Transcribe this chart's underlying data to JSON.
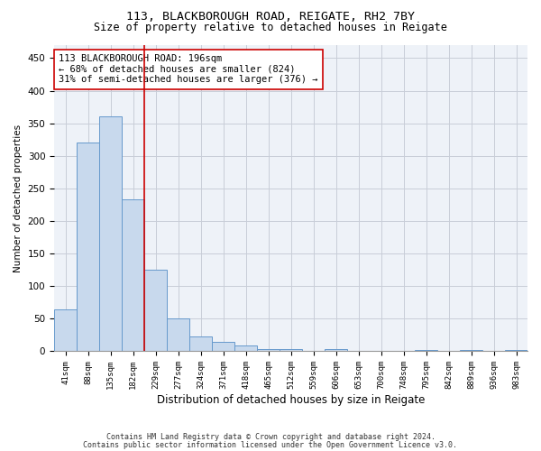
{
  "title1": "113, BLACKBOROUGH ROAD, REIGATE, RH2 7BY",
  "title2": "Size of property relative to detached houses in Reigate",
  "xlabel": "Distribution of detached houses by size in Reigate",
  "ylabel": "Number of detached properties",
  "bar_labels": [
    "41sqm",
    "88sqm",
    "135sqm",
    "182sqm",
    "229sqm",
    "277sqm",
    "324sqm",
    "371sqm",
    "418sqm",
    "465sqm",
    "512sqm",
    "559sqm",
    "606sqm",
    "653sqm",
    "700sqm",
    "748sqm",
    "795sqm",
    "842sqm",
    "889sqm",
    "936sqm",
    "983sqm"
  ],
  "bar_values": [
    65,
    320,
    360,
    233,
    125,
    50,
    23,
    15,
    9,
    4,
    4,
    0,
    3,
    0,
    0,
    0,
    2,
    0,
    2,
    0,
    2
  ],
  "bar_color": "#c8d9ed",
  "bar_edge_color": "#6699cc",
  "vline_x": 3.5,
  "vline_color": "#cc0000",
  "annotation_text": "113 BLACKBOROUGH ROAD: 196sqm\n← 68% of detached houses are smaller (824)\n31% of semi-detached houses are larger (376) →",
  "annotation_box_color": "white",
  "annotation_box_edge": "#cc0000",
  "ylim": [
    0,
    470
  ],
  "yticks": [
    0,
    50,
    100,
    150,
    200,
    250,
    300,
    350,
    400,
    450
  ],
  "footnote1": "Contains HM Land Registry data © Crown copyright and database right 2024.",
  "footnote2": "Contains public sector information licensed under the Open Government Licence v3.0.",
  "background_color": "#eef2f8",
  "grid_color": "#c8cdd8"
}
